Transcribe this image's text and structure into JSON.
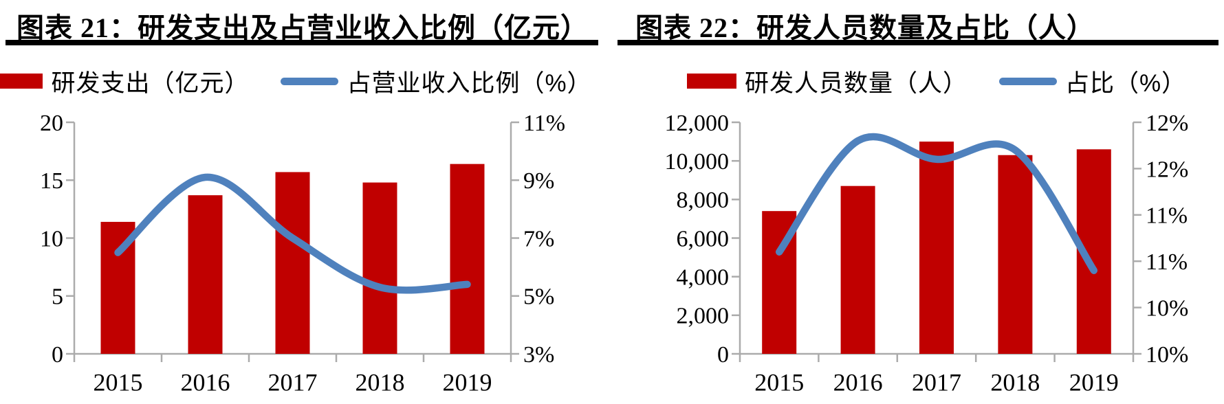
{
  "colors": {
    "bar": "#C00000",
    "line": "#4F81BD",
    "axis": "#ABABAB",
    "text": "#000000",
    "rule": "#000000"
  },
  "panels": [
    {
      "title": "图表 21：研发支出及占营业收入比例（亿元）",
      "legend": [
        {
          "type": "bar",
          "label": "研发支出（亿元）"
        },
        {
          "type": "line",
          "label": "占营业收入比例（%）"
        }
      ]
    },
    {
      "title": "图表 22：研发人员数量及占比（人）",
      "legend": [
        {
          "type": "bar",
          "label": "研发人员数量（人）"
        },
        {
          "type": "line",
          "label": "占比（%）"
        }
      ]
    }
  ],
  "chart_data": [
    {
      "type": "bar",
      "subtype": "bar+smooth-line, dual axis",
      "title": "图表 21：研发支出及占营业收入比例（亿元）",
      "categories": [
        "2015",
        "2016",
        "2017",
        "2018",
        "2019"
      ],
      "series": [
        {
          "name": "研发支出（亿元）",
          "type": "bar",
          "axis": "left",
          "values": [
            11.4,
            13.7,
            15.7,
            14.8,
            16.4
          ]
        },
        {
          "name": "占营业收入比例（%）",
          "type": "line",
          "axis": "right",
          "values": [
            6.5,
            9.1,
            7.0,
            5.3,
            5.4
          ]
        }
      ],
      "left_axis": {
        "min": 0,
        "max": 20,
        "ticks": [
          0,
          5,
          10,
          15,
          20
        ],
        "labels": [
          "0",
          "5",
          "10",
          "15",
          "20"
        ]
      },
      "right_axis": {
        "min": 3,
        "max": 11,
        "ticks": [
          3,
          5,
          7,
          9,
          11
        ],
        "labels": [
          "3%",
          "5%",
          "7%",
          "9%",
          "11%"
        ]
      },
      "grid": false,
      "legend_position": "top"
    },
    {
      "type": "bar",
      "subtype": "bar+smooth-line, dual axis",
      "title": "图表 22：研发人员数量及占比（人）",
      "categories": [
        "2015",
        "2016",
        "2017",
        "2018",
        "2019"
      ],
      "series": [
        {
          "name": "研发人员数量（人）",
          "type": "bar",
          "axis": "left",
          "values": [
            7400,
            8700,
            11000,
            10300,
            10600
          ]
        },
        {
          "name": "占比（%）",
          "type": "line",
          "axis": "right",
          "values": [
            10.6,
            11.8,
            11.6,
            11.7,
            10.4
          ]
        }
      ],
      "left_axis": {
        "min": 0,
        "max": 12000,
        "ticks": [
          0,
          2000,
          4000,
          6000,
          8000,
          10000,
          12000
        ],
        "labels": [
          "0",
          "2,000",
          "4,000",
          "6,000",
          "8,000",
          "10,000",
          "12,000"
        ]
      },
      "right_axis": {
        "min": 9.5,
        "max": 12,
        "ticks": [
          9.5,
          10,
          10.5,
          11,
          11.5,
          12
        ],
        "labels": [
          "10%",
          "10%",
          "11%",
          "11%",
          "12%",
          "12%"
        ]
      },
      "grid": false,
      "legend_position": "top"
    }
  ]
}
